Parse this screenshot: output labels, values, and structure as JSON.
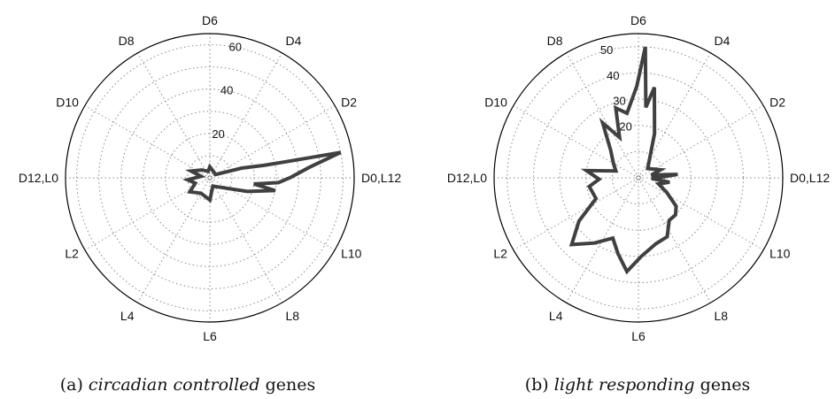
{
  "chart_data": [
    {
      "type": "polar-line",
      "panel": "(a)",
      "caption_prefix": "(a)",
      "caption_italic": "circadian controlled",
      "caption_suffix": "genes",
      "angular_labels": [
        "D0,L12",
        "D2",
        "D4",
        "D6",
        "D8",
        "D10",
        "D12,L0",
        "L2",
        "L4",
        "L6",
        "L8",
        "L10"
      ],
      "radial_ticks": [
        20,
        40,
        60
      ],
      "rmax": 65,
      "series": [
        {
          "values": [
            {
              "angle": 0,
              "r": 36
            },
            {
              "angle": 6,
              "r": 45
            },
            {
              "angle": 11,
              "r": 60
            },
            {
              "angle": 12,
              "r": 35
            },
            {
              "angle": 13,
              "r": 25
            },
            {
              "angle": 17,
              "r": 15
            },
            {
              "angle": 30,
              "r": 3
            },
            {
              "angle": 90,
              "r": 5
            },
            {
              "angle": 105,
              "r": 3
            },
            {
              "angle": 135,
              "r": 5
            },
            {
              "angle": 160,
              "r": 9
            },
            {
              "angle": 170,
              "r": 4
            },
            {
              "angle": 185,
              "r": 10
            },
            {
              "angle": 200,
              "r": 7
            },
            {
              "angle": 215,
              "r": 11
            },
            {
              "angle": 240,
              "r": 8
            },
            {
              "angle": 270,
              "r": 10
            },
            {
              "angle": 290,
              "r": 4
            },
            {
              "angle": 340,
              "r": 18
            },
            {
              "angle": 349,
              "r": 30
            },
            {
              "angle": 352,
              "r": 20
            },
            {
              "angle": 356,
              "r": 31
            }
          ]
        }
      ]
    },
    {
      "type": "polar-line",
      "panel": "(b)",
      "caption_prefix": "(b)",
      "caption_italic": "light responding",
      "caption_suffix": "genes",
      "angular_labels": [
        "D0,L12",
        "D2",
        "D4",
        "D6",
        "D8",
        "D10",
        "D12,L0",
        "L2",
        "L4",
        "L6",
        "L8",
        "L10"
      ],
      "radial_ticks": [
        20,
        30,
        40,
        50
      ],
      "rmax": 55,
      "series": [
        {
          "values": [
            {
              "angle": 0,
              "r": 7
            },
            {
              "angle": 5,
              "r": 15
            },
            {
              "angle": 12,
              "r": 5
            },
            {
              "angle": 20,
              "r": 9
            },
            {
              "angle": 45,
              "r": 5
            },
            {
              "angle": 70,
              "r": 18
            },
            {
              "angle": 80,
              "r": 35
            },
            {
              "angle": 84,
              "r": 27
            },
            {
              "angle": 87,
              "r": 50
            },
            {
              "angle": 91,
              "r": 35
            },
            {
              "angle": 100,
              "r": 25
            },
            {
              "angle": 108,
              "r": 28
            },
            {
              "angle": 115,
              "r": 17
            },
            {
              "angle": 123,
              "r": 25
            },
            {
              "angle": 135,
              "r": 15
            },
            {
              "angle": 150,
              "r": 11
            },
            {
              "angle": 163,
              "r": 9
            },
            {
              "angle": 172,
              "r": 20
            },
            {
              "angle": 182,
              "r": 15
            },
            {
              "angle": 190,
              "r": 19
            },
            {
              "angle": 206,
              "r": 18
            },
            {
              "angle": 216,
              "r": 28
            },
            {
              "angle": 225,
              "r": 36
            },
            {
              "angle": 236,
              "r": 30
            },
            {
              "angle": 247,
              "r": 25
            },
            {
              "angle": 255,
              "r": 30
            },
            {
              "angle": 263,
              "r": 36
            },
            {
              "angle": 272,
              "r": 30
            },
            {
              "angle": 285,
              "r": 26
            },
            {
              "angle": 296,
              "r": 25
            },
            {
              "angle": 306,
              "r": 20
            },
            {
              "angle": 315,
              "r": 20
            },
            {
              "angle": 323,
              "r": 18
            },
            {
              "angle": 333,
              "r": 12
            },
            {
              "angle": 343,
              "r": 8
            },
            {
              "angle": 352,
              "r": 12
            },
            {
              "angle": 357,
              "r": 5
            }
          ]
        }
      ]
    }
  ]
}
